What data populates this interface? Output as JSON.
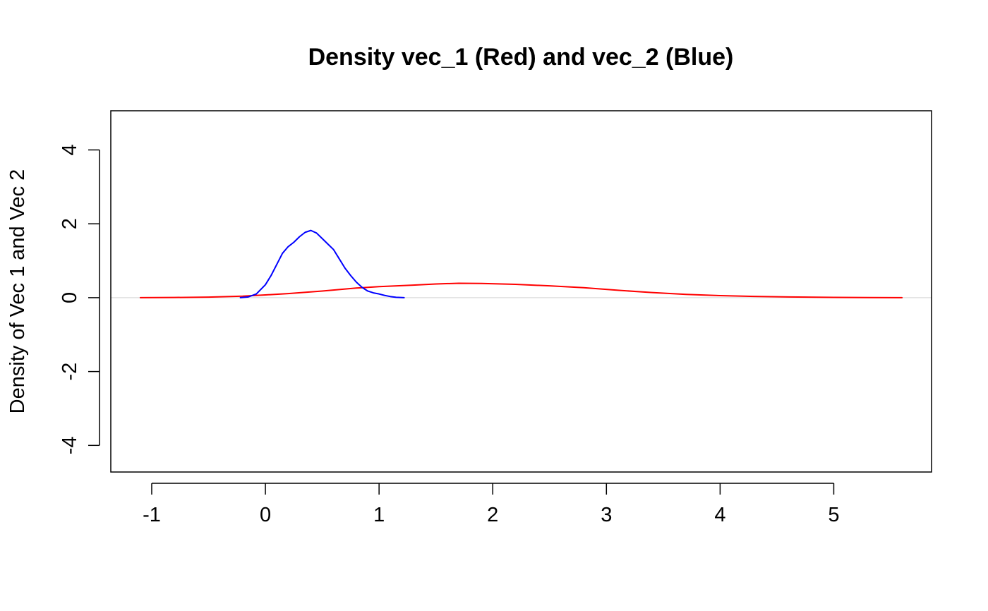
{
  "chart_data": {
    "type": "line",
    "title": "Density vec_1 (Red) and vec_2 (Blue)",
    "xlabel": "",
    "ylabel": "Density of Vec 1 and Vec 2",
    "xlim": [
      -1.36,
      5.86
    ],
    "ylim": [
      -4.72,
      5.06
    ],
    "x_ticks": [
      -1,
      0,
      1,
      2,
      3,
      4,
      5
    ],
    "x_tick_labels": [
      "-1",
      "0",
      "1",
      "2",
      "3",
      "4",
      "5"
    ],
    "y_ticks": [
      -4,
      -2,
      0,
      2,
      4
    ],
    "y_tick_labels": [
      "-4",
      "-2",
      "0",
      "2",
      "4"
    ],
    "grid": false,
    "reference_line": {
      "y": 0,
      "color": "#e0e0e0"
    },
    "series": [
      {
        "color": "#ff0000",
        "x": [
          -1.1,
          -0.8,
          -0.5,
          -0.2,
          0.0,
          0.2,
          0.5,
          0.8,
          1.0,
          1.3,
          1.5,
          1.7,
          1.9,
          2.2,
          2.5,
          2.8,
          3.1,
          3.4,
          3.7,
          4.0,
          4.3,
          4.6,
          5.0,
          5.3,
          5.6
        ],
        "y": [
          0.0,
          0.005,
          0.015,
          0.04,
          0.075,
          0.11,
          0.18,
          0.26,
          0.3,
          0.34,
          0.37,
          0.39,
          0.385,
          0.36,
          0.32,
          0.27,
          0.2,
          0.14,
          0.09,
          0.055,
          0.035,
          0.02,
          0.008,
          0.003,
          0.0
        ]
      },
      {
        "color": "#0000ff",
        "x": [
          -0.22,
          -0.15,
          -0.08,
          0.0,
          0.05,
          0.1,
          0.15,
          0.2,
          0.25,
          0.3,
          0.35,
          0.4,
          0.45,
          0.5,
          0.55,
          0.6,
          0.65,
          0.7,
          0.75,
          0.8,
          0.85,
          0.9,
          0.95,
          1.0,
          1.05,
          1.1,
          1.15,
          1.22
        ],
        "y": [
          0.0,
          0.02,
          0.1,
          0.35,
          0.6,
          0.9,
          1.2,
          1.38,
          1.5,
          1.65,
          1.77,
          1.82,
          1.75,
          1.6,
          1.45,
          1.3,
          1.05,
          0.8,
          0.6,
          0.42,
          0.28,
          0.18,
          0.13,
          0.1,
          0.06,
          0.03,
          0.01,
          0.0
        ]
      }
    ]
  }
}
